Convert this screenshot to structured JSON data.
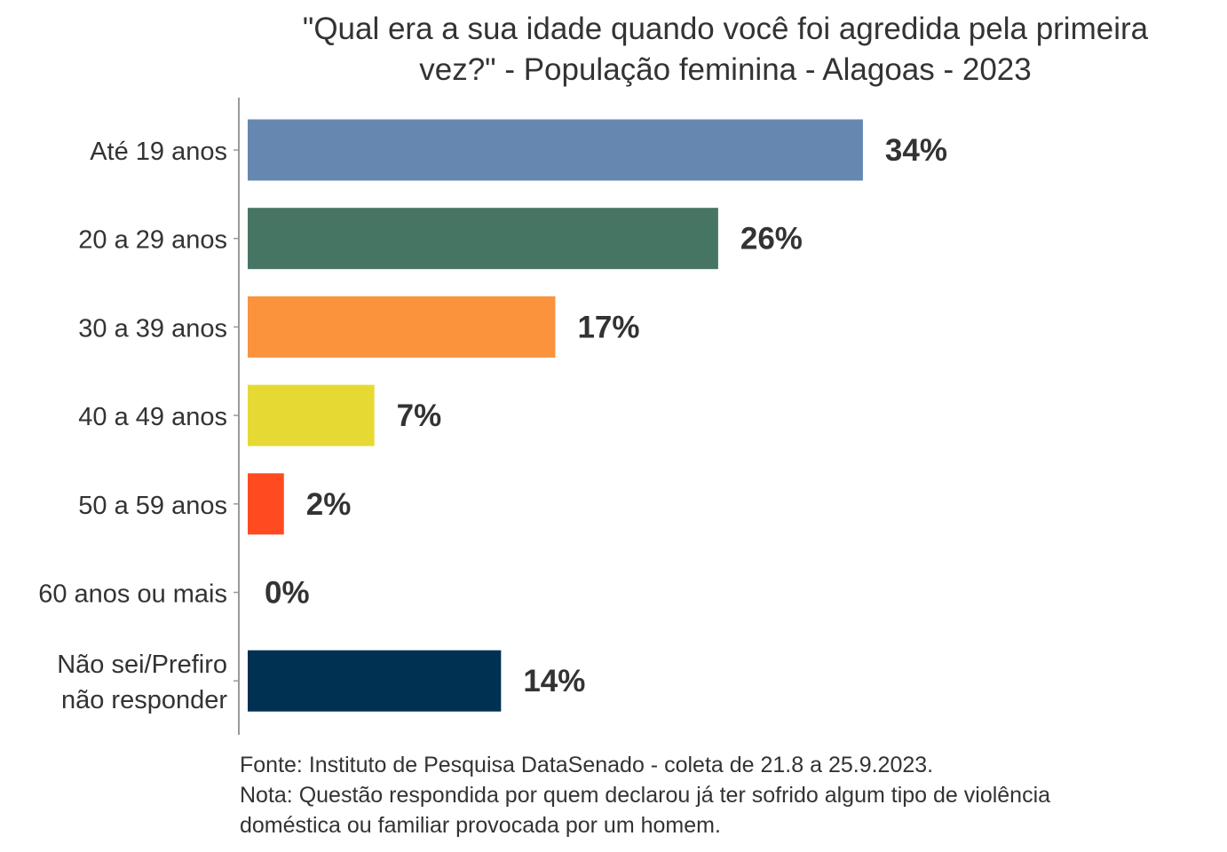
{
  "chart_data": {
    "type": "bar",
    "orientation": "horizontal",
    "title": [
      "\"Qual era a sua idade quando você foi agredida pela primeira",
      "vez?\" - População feminina - Alagoas - 2023"
    ],
    "categories": [
      [
        "Até 19 anos"
      ],
      [
        "20 a 29 anos"
      ],
      [
        "30 a 39 anos"
      ],
      [
        "40 a 49 anos"
      ],
      [
        "50 a 59 anos"
      ],
      [
        "60 anos ou mais"
      ],
      [
        "Não sei/Prefiro",
        "não responder"
      ]
    ],
    "values": [
      34,
      26,
      17,
      7,
      2,
      0,
      14
    ],
    "value_labels": [
      "34%",
      "26%",
      "17%",
      "7%",
      "2%",
      "0%",
      "14%"
    ],
    "colors": [
      "#6688b0",
      "#467563",
      "#fb923c",
      "#e6d934",
      "#ff4b1f",
      "#ffffff",
      "#003153"
    ],
    "xlabel": "",
    "ylabel": "",
    "xlim": [
      0,
      40
    ],
    "grid": false,
    "legend": "none",
    "footnotes": [
      "Fonte: Instituto de Pesquisa DataSenado - coleta de 21.8 a 25.9.2023.",
      "Nota: Questão respondida por quem declarou já ter sofrido algum tipo de violência",
      "doméstica ou familiar provocada por um homem."
    ]
  }
}
